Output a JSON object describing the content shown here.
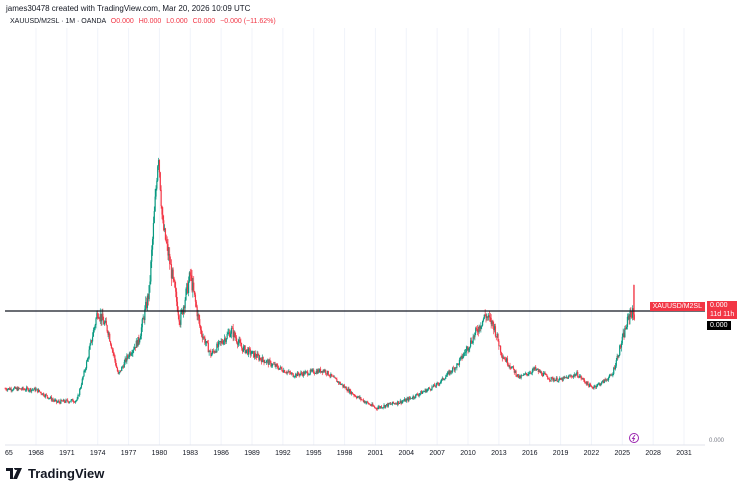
{
  "header": {
    "credit": "james30478 created with TradingView.com, Mar 20, 2026 10:09 UTC"
  },
  "legend": {
    "symbol": "XAUUSD/M2SL · 1M · OANDA",
    "o": "O0.000",
    "h": "H0.000",
    "l": "L0.000",
    "c": "C0.000",
    "chg": "−0.000 (−11.62%)"
  },
  "price_scale": {
    "symbol_label": "XAUUSD/M2SL",
    "price_label": "0.000",
    "countdown": "11d 11h",
    "line_label": "0.000",
    "bottom_label": "0.000"
  },
  "footer": {
    "brand": "TradingView"
  },
  "colors": {
    "up": "#089981",
    "down": "#f23645",
    "line": "#131722"
  },
  "chart_data": {
    "type": "candlestick",
    "title": "XAUUSD/M2SL · 1M · OANDA",
    "xlabel": "",
    "ylabel": "",
    "x_ticks": [
      "65",
      "1968",
      "1971",
      "1974",
      "1977",
      "1980",
      "1983",
      "1986",
      "1989",
      "1992",
      "1995",
      "1998",
      "2001",
      "2004",
      "2007",
      "2010",
      "2013",
      "2016",
      "2019",
      "2022",
      "2025",
      "2028",
      "2031"
    ],
    "xlim": [
      1965,
      2034
    ],
    "ylim": [
      -0.4,
      2.8
    ],
    "horizontal_line": 1.0,
    "keypoints": [
      [
        1965,
        0.2
      ],
      [
        1968,
        0.19
      ],
      [
        1970,
        0.06
      ],
      [
        1972,
        0.08
      ],
      [
        1973,
        0.5
      ],
      [
        1974,
        1.0
      ],
      [
        1975,
        0.8
      ],
      [
        1976,
        0.34
      ],
      [
        1977,
        0.55
      ],
      [
        1978,
        0.7
      ],
      [
        1979,
        1.2
      ],
      [
        1979.9,
        2.64
      ],
      [
        1980.3,
        1.9
      ],
      [
        1981,
        1.5
      ],
      [
        1982,
        0.9
      ],
      [
        1983,
        1.37
      ],
      [
        1984,
        0.8
      ],
      [
        1985,
        0.55
      ],
      [
        1987,
        0.8
      ],
      [
        1988,
        0.62
      ],
      [
        1990,
        0.5
      ],
      [
        1993,
        0.34
      ],
      [
        1996,
        0.39
      ],
      [
        1997,
        0.3
      ],
      [
        1999,
        0.13
      ],
      [
        2001,
        0.0
      ],
      [
        2004,
        0.08
      ],
      [
        2007,
        0.24
      ],
      [
        2009,
        0.45
      ],
      [
        2010,
        0.63
      ],
      [
        2011.7,
        0.96
      ],
      [
        2012.5,
        0.85
      ],
      [
        2013.3,
        0.55
      ],
      [
        2015,
        0.31
      ],
      [
        2016.5,
        0.4
      ],
      [
        2018,
        0.3
      ],
      [
        2019,
        0.29
      ],
      [
        2020.6,
        0.35
      ],
      [
        2022,
        0.21
      ],
      [
        2023,
        0.26
      ],
      [
        2024,
        0.34
      ],
      [
        2025,
        0.7
      ],
      [
        2025.8,
        1.0
      ],
      [
        2026.2,
        0.95
      ]
    ],
    "last_candle_high": 1.27
  }
}
